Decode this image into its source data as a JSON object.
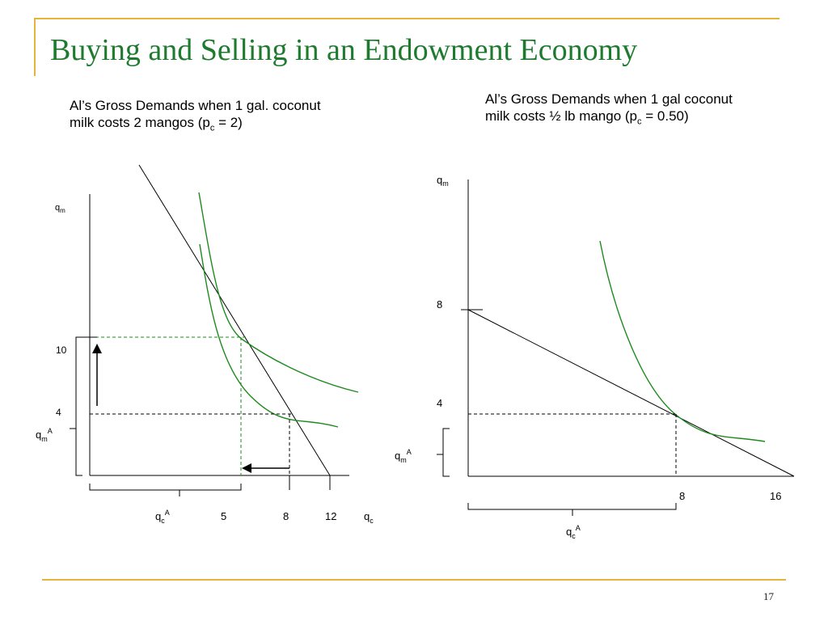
{
  "slide": {
    "title": "Buying and Selling in an Endowment Economy",
    "page_number": "17",
    "accent_color": "#e6b43c",
    "title_color": "#1e7a2e",
    "curve_color": "#1e8a1e"
  },
  "left_panel": {
    "caption_line1": "Al’s Gross Demands when 1 gal. coconut",
    "caption_line2_pre": "milk costs 2 mangos (p",
    "caption_line2_sub": "c",
    "caption_line2_post": " = 2)",
    "y_label": "q",
    "y_label_sub": "m",
    "y_tick_10": "10",
    "y_tick_4": "4",
    "y_endow_label": "q",
    "y_endow_sub": "m",
    "y_endow_sup": "A",
    "x_endow_label": "q",
    "x_endow_sub": "c",
    "x_endow_sup": "A",
    "x_tick_5": "5",
    "x_tick_8": "8",
    "x_tick_12": "12",
    "x_label": "q",
    "x_label_sub": "c"
  },
  "right_panel": {
    "caption_line1": "Al’s Gross Demands when 1 gal coconut",
    "caption_line2_pre": "milk costs ½ lb mango (p",
    "caption_line2_sub": "c",
    "caption_line2_post": " = 0.50)",
    "y_label": "q",
    "y_label_sub": "m",
    "y_tick_8": "8",
    "y_tick_4": "4",
    "y_endow_label": "q",
    "y_endow_sub": "m",
    "y_endow_sup": "A",
    "x_tick_8": "8",
    "x_tick_16": "16",
    "x_endow_label": "q",
    "x_endow_sub": "c",
    "x_endow_sup": "A"
  }
}
